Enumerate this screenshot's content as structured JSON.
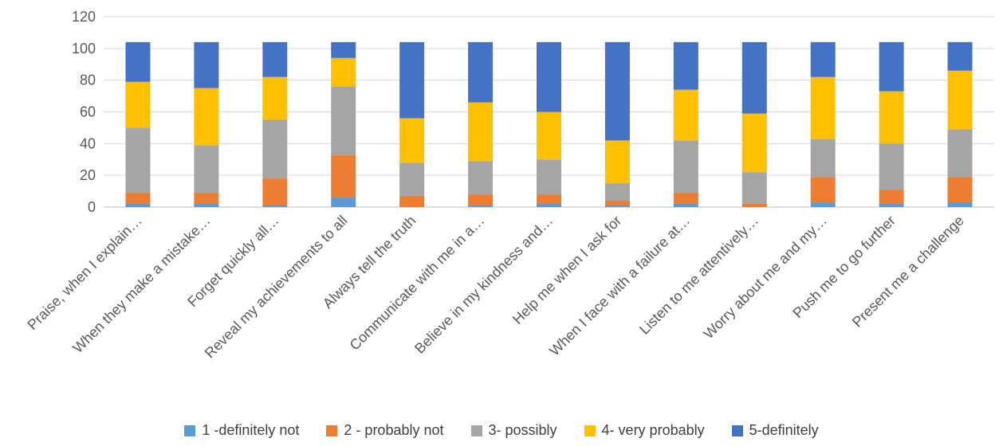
{
  "chart_data": {
    "type": "bar",
    "stacked": true,
    "categories": [
      "Praise, when I explain…",
      "When they make a mistake…",
      "Forget quickly all…",
      "Reveal my achievements to all",
      "Always tell the truth",
      "Communicate with me in a…",
      "Believe in my kindness and…",
      "Help me when I ask for",
      "When I face with a failure at…",
      "Listen to me attentively…",
      "Worry about me and my…",
      "Push me to go further",
      "Present me a challenge"
    ],
    "series": [
      {
        "name": "1 -definitely not",
        "color": "#5B9BD5",
        "values": [
          2,
          2,
          1,
          6,
          0,
          1,
          2,
          1,
          2,
          0,
          3,
          2,
          3
        ]
      },
      {
        "name": "2 - probably not",
        "color": "#ED7D31",
        "values": [
          7,
          7,
          17,
          27,
          7,
          7,
          6,
          3,
          7,
          2,
          16,
          9,
          16
        ]
      },
      {
        "name": "3- possibly",
        "color": "#A5A5A5",
        "values": [
          41,
          30,
          37,
          43,
          21,
          21,
          22,
          11,
          33,
          20,
          24,
          29,
          30
        ]
      },
      {
        "name": "4- very probably",
        "color": "#FFC000",
        "values": [
          29,
          36,
          27,
          18,
          28,
          37,
          30,
          27,
          32,
          37,
          39,
          33,
          37
        ]
      },
      {
        "name": "5-definitely",
        "color": "#4472C4",
        "values": [
          25,
          29,
          22,
          10,
          48,
          38,
          44,
          62,
          30,
          45,
          22,
          31,
          18
        ]
      }
    ],
    "y_ticks": [
      "0",
      "20",
      "40",
      "60",
      "80",
      "100",
      "120"
    ],
    "ylim": [
      0,
      120
    ],
    "grid": true,
    "legend_position": "bottom",
    "title": "",
    "xlabel": "",
    "ylabel": ""
  }
}
